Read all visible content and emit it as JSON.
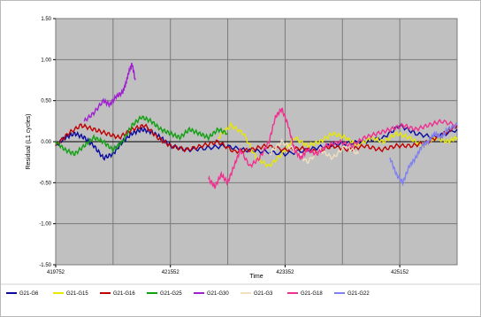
{
  "chart_data": {
    "type": "line",
    "title": "",
    "xlabel": "Time",
    "ylabel": "Residual (L1 cycles)",
    "xlim": [
      419752,
      426052
    ],
    "ylim": [
      -1.5,
      1.5
    ],
    "x_ticks": [
      "419752",
      "421552",
      "423352",
      "425152"
    ],
    "x_tick_values": [
      419752,
      421552,
      423352,
      425152
    ],
    "y_ticks": [
      "1.50",
      "1.00",
      "0.50",
      "0.00",
      "-0.50",
      "-1.00",
      "-1.50"
    ],
    "y_tick_values": [
      1.5,
      1.0,
      0.5,
      0.0,
      -0.5,
      -1.0,
      -1.5
    ],
    "grid": true,
    "legend": "bottom",
    "background": "#c0c0c0",
    "series": [
      {
        "name": "G21-G6",
        "color": "#0a0aa0",
        "x": [
          419752,
          419900,
          420050,
          420200,
          420350,
          420500,
          420650,
          420800,
          420950,
          421100,
          421250,
          421400,
          421552,
          421800,
          422100,
          422400,
          422700,
          423000,
          423352,
          423700,
          424000,
          424300,
          424600,
          424900,
          425152,
          425400,
          425700,
          426052
        ],
        "y": [
          -0.05,
          0.05,
          0.1,
          0.05,
          -0.05,
          -0.2,
          -0.15,
          0.0,
          0.1,
          0.15,
          0.12,
          0.05,
          -0.05,
          -0.1,
          -0.08,
          -0.05,
          -0.1,
          -0.12,
          -0.15,
          -0.1,
          -0.05,
          -0.02,
          0.0,
          0.05,
          0.2,
          0.1,
          0.05,
          0.15
        ]
      },
      {
        "name": "G21-G15",
        "color": "#e8e800",
        "x": [
          422300,
          422500,
          422700,
          422900,
          423100,
          423300,
          423500,
          423700,
          423900,
          424100,
          424300,
          424500,
          424700,
          424900,
          425100,
          425300,
          425500,
          425700,
          425900,
          426052
        ],
        "y": [
          0.05,
          0.2,
          0.1,
          -0.2,
          -0.3,
          -0.15,
          0.05,
          -0.05,
          0.0,
          0.1,
          0.05,
          -0.05,
          0.05,
          0.0,
          0.1,
          0.05,
          -0.05,
          0.05,
          0.0,
          0.05
        ]
      },
      {
        "name": "G21-G16",
        "color": "#c00000",
        "x": [
          419752,
          419950,
          420150,
          420350,
          420550,
          420750,
          420950,
          421150,
          421350,
          421552,
          421800,
          422050,
          422300,
          422550,
          422800,
          423050,
          423352,
          423600,
          423850,
          424100,
          424350,
          424600,
          424850,
          425100,
          425350,
          425600,
          425850,
          426052
        ],
        "y": [
          -0.05,
          0.1,
          0.2,
          0.15,
          0.1,
          0.05,
          0.15,
          0.2,
          0.05,
          -0.05,
          -0.1,
          -0.05,
          0.0,
          -0.12,
          -0.1,
          -0.05,
          -0.1,
          -0.08,
          -0.12,
          -0.05,
          -0.1,
          -0.05,
          -0.1,
          -0.05,
          -0.05,
          0.0,
          0.1,
          0.2
        ]
      },
      {
        "name": "G21-G25",
        "color": "#10a010",
        "x": [
          419752,
          419900,
          420050,
          420200,
          420350,
          420500,
          420650,
          420800,
          420950,
          421100,
          421250,
          421400,
          421552,
          421700,
          421850,
          422000,
          422150,
          422300,
          422450
        ],
        "y": [
          0.0,
          -0.1,
          -0.15,
          -0.05,
          0.05,
          0.0,
          -0.1,
          0.0,
          0.2,
          0.3,
          0.25,
          0.15,
          0.1,
          0.05,
          0.15,
          0.1,
          0.05,
          0.15,
          0.1
        ]
      },
      {
        "name": "G21-G30",
        "color": "#a020d0",
        "x": [
          420200,
          420350,
          420500,
          420600,
          420700,
          420800,
          420850,
          420900,
          420950,
          421000
        ],
        "y": [
          0.25,
          0.35,
          0.5,
          0.45,
          0.55,
          0.6,
          0.7,
          0.85,
          0.95,
          0.75
        ]
      },
      {
        "name": "G21-G3",
        "color": "#f0e0c0",
        "x": [
          423100,
          423300,
          423500,
          423700,
          423900,
          424100,
          424300,
          424500
        ],
        "y": [
          -0.15,
          0.0,
          -0.1,
          -0.25,
          -0.1,
          -0.2,
          -0.05,
          -0.15
        ]
      },
      {
        "name": "G21-G18",
        "color": "#f03090",
        "x": [
          422150,
          422250,
          422350,
          422450,
          422550,
          422650,
          422800,
          422950,
          423100,
          423200,
          423300,
          423400,
          423500,
          423600,
          423700,
          423850,
          424000,
          424200,
          424400,
          424600,
          424800,
          425000,
          425200,
          425400,
          425600,
          425800,
          426052
        ],
        "y": [
          -0.45,
          -0.55,
          -0.4,
          -0.5,
          -0.3,
          -0.1,
          -0.3,
          -0.2,
          0.0,
          0.3,
          0.4,
          0.2,
          -0.1,
          -0.2,
          -0.1,
          -0.15,
          -0.05,
          0.0,
          -0.05,
          0.05,
          0.1,
          0.15,
          0.2,
          0.15,
          0.2,
          0.25,
          0.2
        ]
      },
      {
        "name": "G21-G22",
        "color": "#8080f0",
        "x": [
          425000,
          425100,
          425200,
          425300,
          425400,
          425500,
          425600,
          425700,
          425800,
          425900,
          426052
        ],
        "y": [
          -0.2,
          -0.4,
          -0.5,
          -0.3,
          -0.2,
          -0.05,
          0.0,
          0.1,
          0.05,
          0.15,
          0.2
        ]
      }
    ]
  }
}
